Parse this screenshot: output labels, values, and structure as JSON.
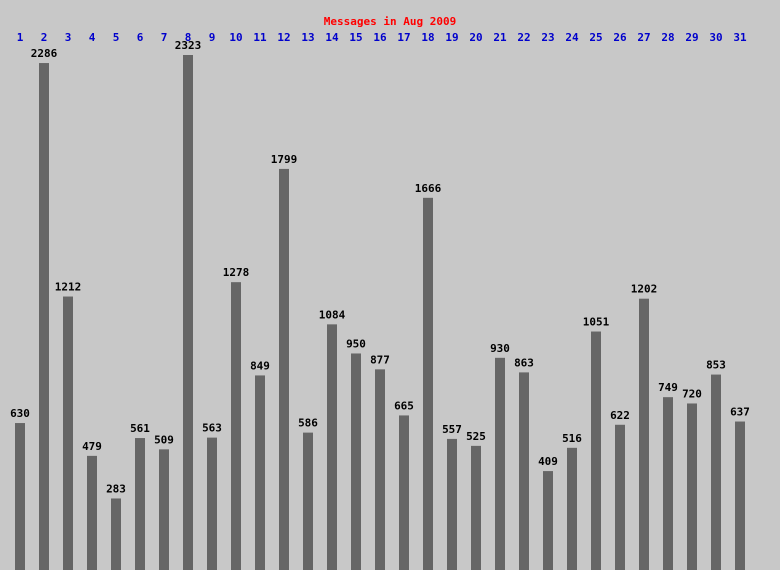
{
  "chart_data": {
    "type": "bar",
    "title": "Messages in Aug 2009",
    "categories": [
      "1",
      "2",
      "3",
      "4",
      "5",
      "6",
      "7",
      "8",
      "9",
      "10",
      "11",
      "12",
      "13",
      "14",
      "15",
      "16",
      "17",
      "18",
      "19",
      "20",
      "21",
      "22",
      "23",
      "24",
      "25",
      "26",
      "27",
      "28",
      "29",
      "30",
      "31"
    ],
    "values": [
      630,
      2286,
      1212,
      479,
      283,
      561,
      509,
      2323,
      563,
      1278,
      849,
      1799,
      586,
      1084,
      950,
      877,
      665,
      1666,
      557,
      525,
      930,
      863,
      409,
      516,
      1051,
      622,
      1202,
      749,
      720,
      853,
      637
    ],
    "color": "#666666"
  }
}
